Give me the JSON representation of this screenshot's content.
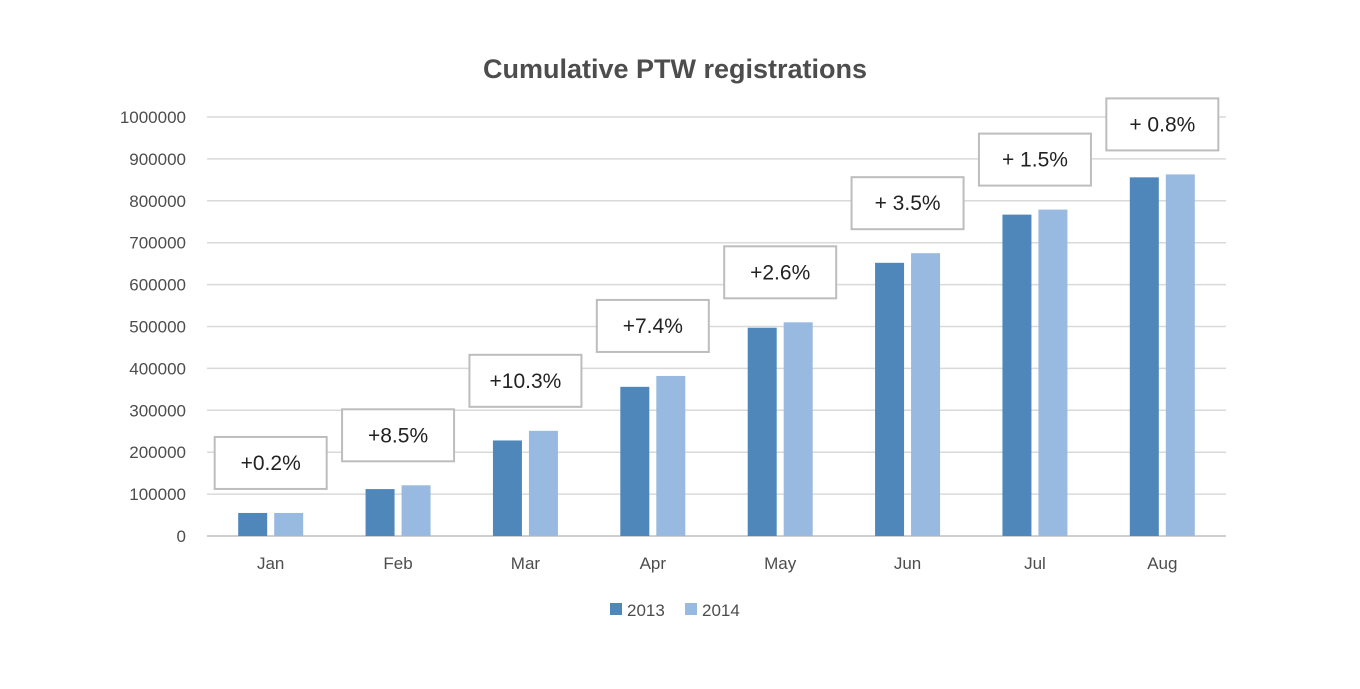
{
  "chart_data": {
    "type": "bar",
    "title": "Cumulative PTW registrations",
    "xlabel": "",
    "ylabel": "",
    "categories": [
      "Jan",
      "Feb",
      "Mar",
      "Apr",
      "May",
      "Jun",
      "Jul",
      "Aug"
    ],
    "series": [
      {
        "name": "2013",
        "color": "#4f87ba",
        "values": [
          55000,
          112000,
          228000,
          356000,
          497000,
          652000,
          767000,
          856000
        ]
      },
      {
        "name": "2014",
        "color": "#98b9e0",
        "values": [
          55000,
          121000,
          251000,
          382000,
          510000,
          675000,
          779000,
          863000
        ]
      }
    ],
    "annotations": [
      "+0.2%",
      "+8.5%",
      "+10.3%",
      "+7.4%",
      "+2.6%",
      "+ 3.5%",
      "+ 1.5%",
      "+ 0.8%"
    ],
    "ylim": [
      0,
      1000000
    ],
    "yticks": [
      0,
      100000,
      200000,
      300000,
      400000,
      500000,
      600000,
      700000,
      800000,
      900000,
      1000000
    ],
    "grid": true,
    "legend_position": "bottom"
  }
}
